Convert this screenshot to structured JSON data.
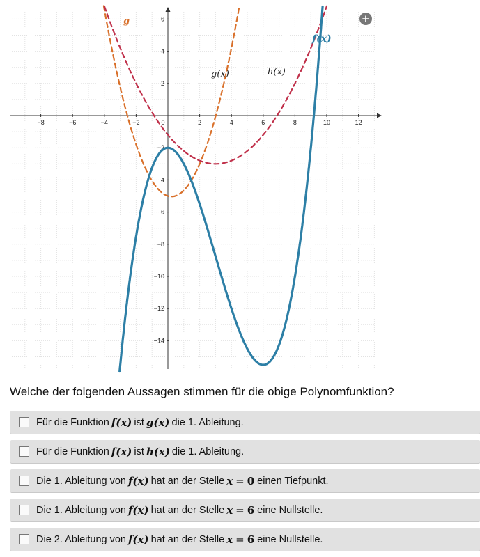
{
  "graph": {
    "x_ticks": [
      "−8",
      "−6",
      "−4",
      "−2",
      "0",
      "2",
      "4",
      "6",
      "8",
      "10",
      "12"
    ],
    "y_ticks": [
      "6",
      "4",
      "2",
      "−2",
      "−4",
      "−6",
      "−8",
      "−10",
      "−12",
      "−14"
    ],
    "labels": {
      "g": "g(x)",
      "h": "h(x)",
      "f": "f(x)",
      "g_edge": "g"
    },
    "colors": {
      "f": "#2d7fa6",
      "g": "#d9702a",
      "h": "#c0304a",
      "grid": "#d4d4d4",
      "axis": "#333333"
    },
    "icons": {
      "zoom": "plus-circle-icon"
    },
    "zoom_symbol": "+"
  },
  "question": "Welche der folgenden Aussagen stimmen für die obige Polynomfunktion?",
  "options": [
    {
      "pre": "Für die Funktion",
      "m1": "f(x)",
      "mid": "ist",
      "m2": "g(x)",
      "post": "die 1. Ableitung."
    },
    {
      "pre": "Für die Funktion",
      "m1": "f(x)",
      "mid": "ist",
      "m2": "h(x)",
      "post": "die 1. Ableitung."
    },
    {
      "pre": "Die 1. Ableitung von",
      "m1": "f(x)",
      "mid": "hat an der Stelle",
      "var": "x",
      "eq": "=",
      "num": "0",
      "post": "einen Tiefpunkt."
    },
    {
      "pre": "Die 1. Ableitung von",
      "m1": "f(x)",
      "mid": "hat an der Stelle",
      "var": "x",
      "eq": "=",
      "num": "6",
      "post": "eine Nullstelle."
    },
    {
      "pre": "Die 2. Ableitung von",
      "m1": "f(x)",
      "mid": "hat an der Stelle",
      "var": "x",
      "eq": "=",
      "num": "6",
      "post": "eine Nullstelle."
    }
  ]
}
